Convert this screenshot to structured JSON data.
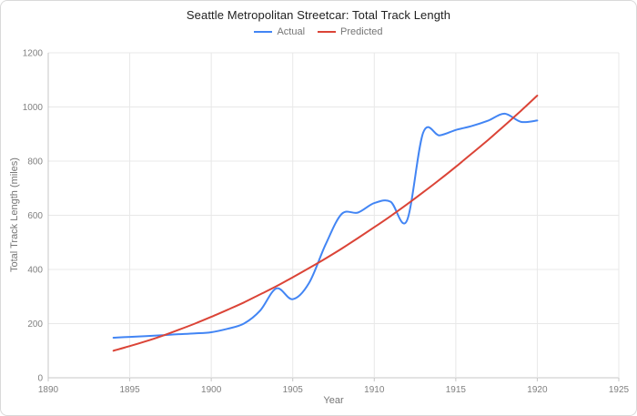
{
  "chart_data": {
    "type": "line",
    "title": "Seattle Metropolitan Streetcar: Total Track Length",
    "xlabel": "Year",
    "ylabel": "Total Track Length (miles)",
    "xlim": [
      1890,
      1925
    ],
    "ylim": [
      0,
      1200
    ],
    "x_ticks": [
      1890,
      1895,
      1900,
      1905,
      1910,
      1915,
      1920,
      1925
    ],
    "y_ticks": [
      0,
      200,
      400,
      600,
      800,
      1000,
      1200
    ],
    "grid": true,
    "legend_position": "top",
    "line_style": "smooth",
    "x": [
      1894,
      1895,
      1896,
      1897,
      1898,
      1899,
      1900,
      1901,
      1902,
      1903,
      1904,
      1905,
      1906,
      1907,
      1908,
      1909,
      1910,
      1911,
      1912,
      1913,
      1914,
      1915,
      1916,
      1917,
      1918,
      1919,
      1920
    ],
    "series": [
      {
        "name": "Actual",
        "color": "#4285f4",
        "values": [
          148,
          151,
          154,
          157,
          161,
          164,
          168,
          181,
          200,
          248,
          330,
          290,
          350,
          490,
          605,
          610,
          645,
          650,
          580,
          905,
          895,
          915,
          930,
          950,
          975,
          945,
          950
        ]
      },
      {
        "name": "Predicted",
        "color": "#db4437",
        "values": [
          100,
          117,
          135,
          155,
          177,
          200,
          225,
          251,
          278,
          308,
          338,
          371,
          405,
          440,
          477,
          516,
          556,
          597,
          640,
          685,
          731,
          779,
          829,
          879,
          932,
          986,
          1042
        ]
      }
    ],
    "colors": {
      "grid": "#e8e8e8",
      "axis": "#c7c7c7",
      "tick_label": "#808080",
      "title": "#212121",
      "legend_text": "#757575"
    }
  }
}
